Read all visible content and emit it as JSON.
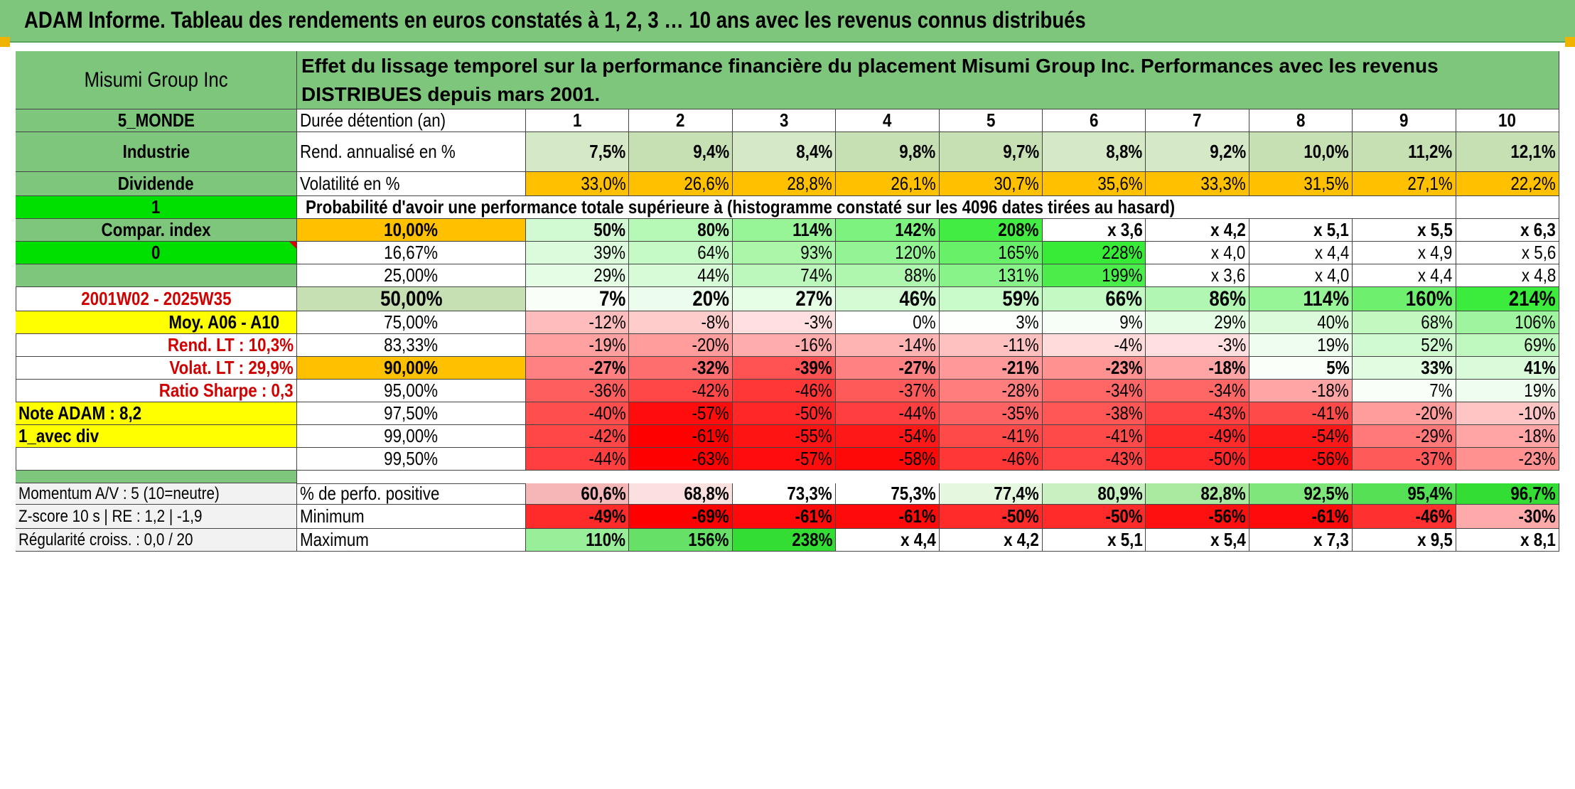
{
  "title": "ADAM Informe. Tableau des rendements en euros constatés à 1, 2, 3 … 10 ans avec les revenus connus distribués",
  "left_panel": {
    "fund_name": "Misumi Group Inc",
    "zone": "5_MONDE",
    "sector": "Industrie",
    "mode": "Dividende",
    "param1": "1",
    "compar_index": "Compar. index",
    "param2": "0",
    "period": "2001W02 - 2025W35",
    "moy": "Moy. A06 - A10",
    "rend_lt": "Rend. LT :   10,3%",
    "volat_lt": "Volat. LT :   29,9%",
    "ratio_sharpe": "Ratio Sharpe :    0,3",
    "note_adam": "Note ADAM : 8,2",
    "avec_div": "1_avec div",
    "momentum": "Momentum A/V : 5 (10=neutre)",
    "zscore": "Z-score 10 s | RE : 1,2 | -1,9",
    "regularite": "Régularité croiss. : 0,0 / 20"
  },
  "description": "Effet du lissage temporel sur la performance financière du placement Misumi Group Inc. Performances avec les revenus DISTRIBUES depuis mars 2001.",
  "duration_label": "Durée détention (an)",
  "years": [
    "1",
    "2",
    "3",
    "4",
    "5",
    "6",
    "7",
    "8",
    "9",
    "10"
  ],
  "rend_label": "Rend. annualisé en %",
  "rend_values": [
    "7,5%",
    "9,4%",
    "8,4%",
    "9,8%",
    "9,7%",
    "8,8%",
    "9,2%",
    "10,0%",
    "11,2%",
    "12,1%"
  ],
  "vol_label": "Volatilité en %",
  "vol_values": [
    "33,0%",
    "26,6%",
    "28,8%",
    "26,1%",
    "30,7%",
    "35,6%",
    "33,3%",
    "31,5%",
    "27,1%",
    "22,2%"
  ],
  "prob_label": "Probabilité d'avoir une performance totale supérieure à (histogramme constaté sur les 4096 dates tirées au hasard)",
  "prob_rows": [
    {
      "p": "10,00%",
      "v": [
        "50%",
        "80%",
        "114%",
        "142%",
        "208%",
        "x 3,6",
        "x 4,2",
        "x 5,1",
        "x 5,5",
        "x 6,3"
      ]
    },
    {
      "p": "16,67%",
      "v": [
        "39%",
        "64%",
        "93%",
        "120%",
        "165%",
        "228%",
        "x 4,0",
        "x 4,4",
        "x 4,9",
        "x 5,6"
      ]
    },
    {
      "p": "25,00%",
      "v": [
        "29%",
        "44%",
        "74%",
        "88%",
        "131%",
        "199%",
        "x 3,6",
        "x 4,0",
        "x 4,4",
        "x 4,8"
      ]
    },
    {
      "p": "50,00%",
      "v": [
        "7%",
        "20%",
        "27%",
        "46%",
        "59%",
        "66%",
        "86%",
        "114%",
        "160%",
        "214%"
      ]
    },
    {
      "p": "75,00%",
      "v": [
        "-12%",
        "-8%",
        "-3%",
        "0%",
        "3%",
        "9%",
        "29%",
        "40%",
        "68%",
        "106%"
      ]
    },
    {
      "p": "83,33%",
      "v": [
        "-19%",
        "-20%",
        "-16%",
        "-14%",
        "-11%",
        "-4%",
        "-3%",
        "19%",
        "52%",
        "69%"
      ]
    },
    {
      "p": "90,00%",
      "v": [
        "-27%",
        "-32%",
        "-39%",
        "-27%",
        "-21%",
        "-23%",
        "-18%",
        "5%",
        "33%",
        "41%"
      ]
    },
    {
      "p": "95,00%",
      "v": [
        "-36%",
        "-42%",
        "-46%",
        "-37%",
        "-28%",
        "-34%",
        "-34%",
        "-18%",
        "7%",
        "19%"
      ]
    },
    {
      "p": "97,50%",
      "v": [
        "-40%",
        "-57%",
        "-50%",
        "-44%",
        "-35%",
        "-38%",
        "-43%",
        "-41%",
        "-20%",
        "-10%"
      ]
    },
    {
      "p": "99,00%",
      "v": [
        "-42%",
        "-61%",
        "-55%",
        "-54%",
        "-41%",
        "-41%",
        "-49%",
        "-54%",
        "-29%",
        "-18%"
      ]
    },
    {
      "p": "99,50%",
      "v": [
        "-44%",
        "-63%",
        "-57%",
        "-58%",
        "-46%",
        "-43%",
        "-50%",
        "-56%",
        "-37%",
        "-23%"
      ]
    }
  ],
  "positive_label": "% de perfo. positive",
  "positive_values": [
    "60,6%",
    "68,8%",
    "73,3%",
    "75,3%",
    "77,4%",
    "80,9%",
    "82,8%",
    "92,5%",
    "95,4%",
    "96,7%"
  ],
  "min_label": "Minimum",
  "min_values": [
    "-49%",
    "-69%",
    "-61%",
    "-61%",
    "-50%",
    "-50%",
    "-56%",
    "-61%",
    "-46%",
    "-30%"
  ],
  "max_label": "Maximum",
  "max_values": [
    "110%",
    "156%",
    "238%",
    "x 4,4",
    "x 4,2",
    "x 5,1",
    "x 5,4",
    "x 7,3",
    "x 9,5",
    "x 8,1"
  ],
  "colors": {
    "header_green": "#7dc67c",
    "light_green": "#c6e0b4",
    "orange": "#ffc000",
    "bright_green": "#00e000",
    "yellow": "#ffff00",
    "strong_red": "#ff0000",
    "strong_green": "#33ee33"
  }
}
